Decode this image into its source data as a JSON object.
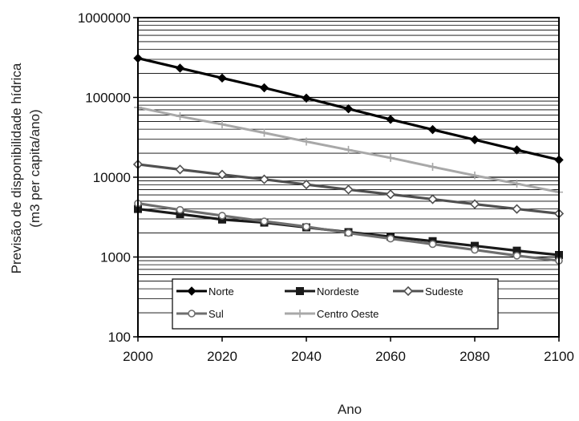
{
  "chart_data": {
    "type": "line",
    "xlabel": "Ano",
    "ylabel": [
      "Previsão de disponibilidade hídrica",
      "(m3 per capita/ano)"
    ],
    "x": [
      2000,
      2010,
      2020,
      2030,
      2040,
      2050,
      2060,
      2070,
      2080,
      2090,
      2100
    ],
    "xlim": [
      2000,
      2100
    ],
    "x_ticks": [
      "2000",
      "2020",
      "2040",
      "2060",
      "2080",
      "2100"
    ],
    "y_scale": "log",
    "ylim": [
      100,
      1000000
    ],
    "y_ticks": [
      "100",
      "1000",
      "10000",
      "100000",
      "1000000"
    ],
    "grid": "horizontal",
    "legend_position": "bottom",
    "series": [
      {
        "name": "Norte",
        "color": "#000000",
        "marker": "diamond",
        "values": [
          310000,
          233000,
          175000,
          132000,
          98000,
          72000,
          53000,
          39500,
          29500,
          22000,
          16500
        ]
      },
      {
        "name": "Nordeste",
        "color": "#1a1a1a",
        "marker": "square",
        "values": [
          4000,
          3450,
          2950,
          2700,
          2350,
          2050,
          1800,
          1580,
          1380,
          1200,
          1060
        ]
      },
      {
        "name": "Sudeste",
        "color": "#505050",
        "marker": "hollow-diamond",
        "values": [
          14500,
          12500,
          10800,
          9400,
          8100,
          7000,
          6100,
          5300,
          4600,
          4000,
          3500
        ]
      },
      {
        "name": "Sul",
        "color": "#6e6e6e",
        "marker": "hollow-circle",
        "values": [
          4700,
          3900,
          3300,
          2800,
          2400,
          2000,
          1700,
          1450,
          1230,
          1040,
          900
        ]
      },
      {
        "name": "Centro Oeste",
        "color": "#a8a8a8",
        "marker": "plus",
        "values": [
          75000,
          58000,
          46000,
          36000,
          28000,
          22000,
          17500,
          13500,
          10500,
          8300,
          6500
        ]
      }
    ]
  }
}
